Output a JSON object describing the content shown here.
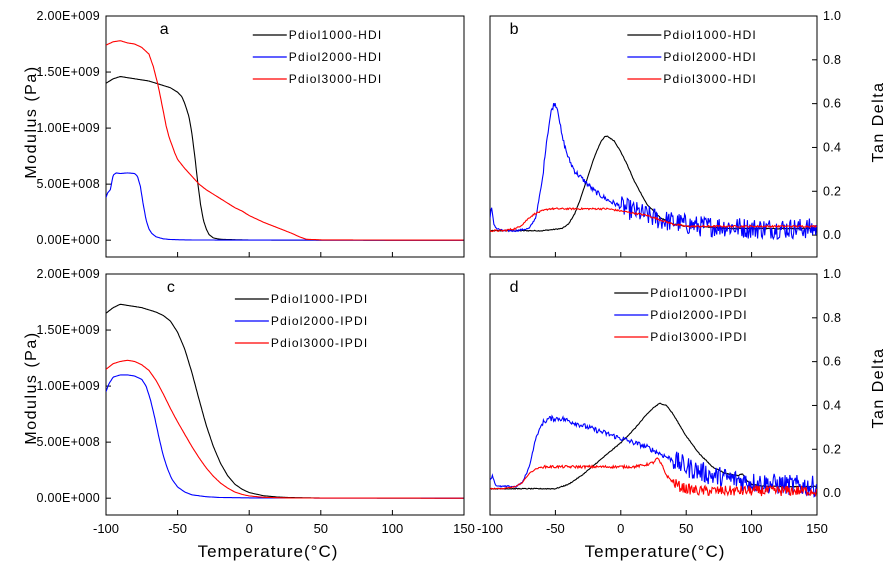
{
  "chart_data": [
    {
      "panel": "a",
      "type": "line",
      "panel_label": "a",
      "ylabel": "Modulus (Pa)",
      "xlim": [
        -100,
        150
      ],
      "ylim": [
        -150000000.0,
        2000000000.0
      ],
      "yticks": [
        0,
        500000000.0,
        1000000000.0,
        1500000000.0,
        2000000000.0
      ],
      "ytick_labels": [
        "0.00E+000",
        "5.00E+008",
        "1.00E+009",
        "1.50E+009",
        "2.00E+009"
      ],
      "y_axis_side": "left",
      "legend_position": "top-right",
      "series": [
        {
          "name": "Pdiol1000-HDI",
          "color": "#000000",
          "noise": 0.0,
          "x": [
            -100,
            -95,
            -90,
            -85,
            -80,
            -75,
            -70,
            -65,
            -60,
            -55,
            -50,
            -47,
            -45,
            -42,
            -40,
            -38,
            -36,
            -34,
            -32,
            -30,
            -28,
            -25,
            -20,
            -10,
            0,
            20,
            50,
            100,
            150
          ],
          "y": [
            1400000000.0,
            1440000000.0,
            1460000000.0,
            1450000000.0,
            1440000000.0,
            1430000000.0,
            1420000000.0,
            1400000000.0,
            1380000000.0,
            1360000000.0,
            1320000000.0,
            1280000000.0,
            1220000000.0,
            1100000000.0,
            950000000.0,
            750000000.0,
            520000000.0,
            320000000.0,
            180000000.0,
            100000000.0,
            50000000.0,
            20000000.0,
            8000000.0,
            4000000.0,
            2000000.0,
            1000000.0,
            500000.0,
            200000.0,
            100000.0
          ]
        },
        {
          "name": "Pdiol2000-HDI",
          "color": "#0000ff",
          "noise": 0.0,
          "x": [
            -100,
            -99,
            -97,
            -95,
            -93,
            -90,
            -85,
            -80,
            -78,
            -76,
            -74,
            -72,
            -70,
            -68,
            -65,
            -60,
            -55,
            -50,
            -40,
            -20,
            0,
            50,
            100,
            150
          ],
          "y": [
            380000000.0,
            420000000.0,
            450000000.0,
            580000000.0,
            600000000.0,
            595000000.0,
            600000000.0,
            595000000.0,
            570000000.0,
            480000000.0,
            320000000.0,
            180000000.0,
            100000000.0,
            60000000.0,
            30000000.0,
            12000000.0,
            6000000.0,
            4000000.0,
            2000000.0,
            1000000.0,
            600000.0,
            300000.0,
            100000.0,
            50000.0
          ]
        },
        {
          "name": "Pdiol3000-HDI",
          "color": "#ff0000",
          "noise": 0.0,
          "x": [
            -100,
            -95,
            -90,
            -85,
            -80,
            -75,
            -70,
            -67,
            -64,
            -62,
            -60,
            -58,
            -56,
            -54,
            -52,
            -50,
            -45,
            -40,
            -35,
            -30,
            -25,
            -20,
            -15,
            -10,
            -5,
            0,
            5,
            10,
            20,
            30,
            35,
            40,
            50,
            100,
            150
          ],
          "y": [
            1740000000.0,
            1770000000.0,
            1780000000.0,
            1760000000.0,
            1750000000.0,
            1720000000.0,
            1660000000.0,
            1550000000.0,
            1400000000.0,
            1280000000.0,
            1150000000.0,
            1020000000.0,
            920000000.0,
            850000000.0,
            780000000.0,
            720000000.0,
            640000000.0,
            570000000.0,
            500000000.0,
            450000000.0,
            410000000.0,
            370000000.0,
            330000000.0,
            290000000.0,
            260000000.0,
            220000000.0,
            190000000.0,
            160000000.0,
            110000000.0,
            60000000.0,
            30000000.0,
            8000000.0,
            3000000.0,
            1000000.0,
            500000.0
          ]
        }
      ]
    },
    {
      "panel": "b",
      "type": "line",
      "panel_label": "b",
      "ylabel": "Tan Delta",
      "xlim": [
        -100,
        150
      ],
      "ylim": [
        -0.1,
        1.0
      ],
      "yticks": [
        0,
        0.2,
        0.4,
        0.6,
        0.8,
        1.0
      ],
      "ytick_labels": [
        "0.0",
        "0.2",
        "0.4",
        "0.6",
        "0.8",
        "1.0"
      ],
      "y_axis_side": "right",
      "legend_position": "top-right",
      "series": [
        {
          "name": "Pdiol1000-HDI",
          "color": "#000000",
          "noise": 0.002,
          "x": [
            -100,
            -80,
            -60,
            -45,
            -40,
            -35,
            -30,
            -25,
            -20,
            -15,
            -12,
            -10,
            -5,
            0,
            5,
            10,
            20,
            30,
            40,
            50,
            60,
            80,
            100,
            120,
            150
          ],
          "y": [
            0.02,
            0.02,
            0.02,
            0.03,
            0.05,
            0.1,
            0.18,
            0.27,
            0.36,
            0.43,
            0.45,
            0.45,
            0.43,
            0.38,
            0.32,
            0.25,
            0.14,
            0.08,
            0.05,
            0.04,
            0.04,
            0.03,
            0.03,
            0.03,
            0.03
          ]
        },
        {
          "name": "Pdiol2000-HDI",
          "color": "#0000ff",
          "noise": 0.008,
          "noise_after": 0,
          "x": [
            -100,
            -99,
            -97,
            -95,
            -90,
            -80,
            -70,
            -65,
            -60,
            -57,
            -55,
            -53,
            -51,
            -50,
            -48,
            -45,
            -40,
            -35,
            -30,
            -20,
            -10,
            0,
            10,
            20,
            30,
            40,
            50,
            60,
            80,
            100,
            120,
            150
          ],
          "y": [
            0.08,
            0.13,
            0.05,
            0.03,
            0.02,
            0.02,
            0.03,
            0.08,
            0.25,
            0.42,
            0.5,
            0.57,
            0.6,
            0.6,
            0.57,
            0.45,
            0.35,
            0.29,
            0.26,
            0.2,
            0.16,
            0.13,
            0.11,
            0.09,
            0.07,
            0.06,
            0.05,
            0.04,
            0.04,
            0.03,
            0.03,
            0.03
          ]
        },
        {
          "name": "Pdiol3000-HDI",
          "color": "#ff0000",
          "noise": 0.004,
          "x": [
            -100,
            -90,
            -80,
            -75,
            -70,
            -65,
            -60,
            -55,
            -50,
            -40,
            -30,
            -20,
            -10,
            0,
            10,
            20,
            30,
            40,
            50,
            60,
            70,
            80,
            100,
            120,
            150
          ],
          "y": [
            0.02,
            0.02,
            0.03,
            0.05,
            0.08,
            0.1,
            0.11,
            0.12,
            0.12,
            0.12,
            0.12,
            0.12,
            0.12,
            0.11,
            0.1,
            0.09,
            0.07,
            0.05,
            0.04,
            0.04,
            0.04,
            0.04,
            0.04,
            0.04,
            0.04
          ]
        }
      ]
    },
    {
      "panel": "c",
      "type": "line",
      "panel_label": "c",
      "ylabel": "Modulus (Pa)",
      "xlabel": "Temperature(°C)",
      "xlim": [
        -100,
        150
      ],
      "ylim": [
        -150000000.0,
        2000000000.0
      ],
      "xticks": [
        -100,
        -50,
        0,
        50,
        100,
        150
      ],
      "yticks": [
        0,
        500000000.0,
        1000000000.0,
        1500000000.0,
        2000000000.0
      ],
      "ytick_labels": [
        "0.00E+000",
        "5.00E+008",
        "1.00E+009",
        "1.50E+009",
        "2.00E+009"
      ],
      "y_axis_side": "left",
      "legend_position": "top-right",
      "series": [
        {
          "name": "Pdiol1000-IPDI",
          "color": "#000000",
          "noise": 0.0,
          "x": [
            -100,
            -95,
            -90,
            -85,
            -80,
            -75,
            -70,
            -65,
            -60,
            -55,
            -50,
            -45,
            -40,
            -35,
            -30,
            -25,
            -20,
            -15,
            -10,
            -5,
            0,
            10,
            20,
            30,
            50,
            100,
            150
          ],
          "y": [
            1650000000.0,
            1700000000.0,
            1730000000.0,
            1720000000.0,
            1710000000.0,
            1700000000.0,
            1680000000.0,
            1660000000.0,
            1630000000.0,
            1580000000.0,
            1480000000.0,
            1330000000.0,
            1120000000.0,
            880000000.0,
            650000000.0,
            460000000.0,
            310000000.0,
            200000000.0,
            125000000.0,
            80000000.0,
            50000000.0,
            22000000.0,
            10000000.0,
            5000000.0,
            2000000.0,
            1000000.0,
            500000.0
          ]
        },
        {
          "name": "Pdiol2000-IPDI",
          "color": "#0000ff",
          "noise": 0.0,
          "x": [
            -100,
            -98,
            -95,
            -90,
            -85,
            -80,
            -75,
            -72,
            -69,
            -66,
            -63,
            -60,
            -57,
            -54,
            -50,
            -45,
            -40,
            -30,
            -20,
            0,
            50,
            100,
            150
          ],
          "y": [
            950000000.0,
            1020000000.0,
            1080000000.0,
            1100000000.0,
            1100000000.0,
            1090000000.0,
            1060000000.0,
            1000000000.0,
            880000000.0,
            720000000.0,
            540000000.0,
            380000000.0,
            260000000.0,
            170000000.0,
            100000000.0,
            55000000.0,
            30000000.0,
            13000000.0,
            6000000.0,
            3000000.0,
            1000000.0,
            500000.0,
            200000.0
          ]
        },
        {
          "name": "Pdiol3000-IPDI",
          "color": "#ff0000",
          "noise": 0.0,
          "x": [
            -100,
            -95,
            -90,
            -85,
            -80,
            -75,
            -70,
            -65,
            -60,
            -55,
            -50,
            -45,
            -40,
            -35,
            -30,
            -25,
            -20,
            -15,
            -10,
            -5,
            0,
            10,
            20,
            30,
            50,
            100,
            150
          ],
          "y": [
            1150000000.0,
            1200000000.0,
            1220000000.0,
            1230000000.0,
            1220000000.0,
            1190000000.0,
            1140000000.0,
            1050000000.0,
            930000000.0,
            800000000.0,
            680000000.0,
            570000000.0,
            460000000.0,
            360000000.0,
            270000000.0,
            195000000.0,
            135000000.0,
            90000000.0,
            55000000.0,
            34000000.0,
            20000000.0,
            8000000.0,
            4000000.0,
            2000000.0,
            1000000.0,
            400000.0,
            200000.0
          ]
        }
      ]
    },
    {
      "panel": "d",
      "type": "line",
      "panel_label": "d",
      "ylabel": "Tan Delta",
      "xlabel": "Temperature(°C)",
      "xlim": [
        -100,
        150
      ],
      "ylim": [
        -0.1,
        1.0
      ],
      "xticks": [
        -100,
        -50,
        0,
        50,
        100,
        150
      ],
      "yticks": [
        0,
        0.2,
        0.4,
        0.6,
        0.8,
        1.0
      ],
      "ytick_labels": [
        "0.0",
        "0.2",
        "0.4",
        "0.6",
        "0.8",
        "1.0"
      ],
      "y_axis_side": "right",
      "legend_position": "top-right",
      "series": [
        {
          "name": "Pdiol1000-IPDI",
          "color": "#000000",
          "noise": 0.002,
          "x": [
            -100,
            -80,
            -60,
            -50,
            -40,
            -30,
            -20,
            -10,
            0,
            10,
            20,
            25,
            30,
            35,
            40,
            50,
            60,
            70,
            80,
            90,
            93,
            96,
            100,
            110,
            120,
            150
          ],
          "y": [
            0.02,
            0.02,
            0.02,
            0.02,
            0.04,
            0.08,
            0.13,
            0.18,
            0.23,
            0.29,
            0.36,
            0.39,
            0.41,
            0.4,
            0.36,
            0.26,
            0.18,
            0.12,
            0.09,
            0.08,
            0.09,
            0.06,
            0.04,
            0.03,
            0.03,
            0.03
          ]
        },
        {
          "name": "Pdiol2000-IPDI",
          "color": "#0000ff",
          "noise": 0.008,
          "noise_after": 40,
          "x": [
            -100,
            -98,
            -96,
            -94,
            -90,
            -80,
            -75,
            -70,
            -65,
            -60,
            -55,
            -50,
            -45,
            -40,
            -30,
            -20,
            -10,
            0,
            10,
            20,
            30,
            40,
            50,
            60,
            70,
            80,
            100,
            120,
            150
          ],
          "y": [
            0.06,
            0.08,
            0.04,
            0.03,
            0.03,
            0.03,
            0.05,
            0.12,
            0.25,
            0.32,
            0.34,
            0.34,
            0.34,
            0.33,
            0.31,
            0.29,
            0.27,
            0.25,
            0.23,
            0.21,
            0.18,
            0.15,
            0.12,
            0.1,
            0.08,
            0.07,
            0.05,
            0.04,
            0.03
          ]
        },
        {
          "name": "Pdiol3000-IPDI",
          "color": "#ff0000",
          "noise": 0.004,
          "noise_after": 40,
          "x": [
            -100,
            -90,
            -80,
            -75,
            -70,
            -65,
            -60,
            -50,
            -40,
            -30,
            -20,
            -10,
            0,
            10,
            20,
            25,
            28,
            30,
            32,
            35,
            40,
            45,
            50,
            60,
            80,
            100,
            120,
            150
          ],
          "y": [
            0.02,
            0.02,
            0.03,
            0.05,
            0.09,
            0.11,
            0.12,
            0.12,
            0.12,
            0.12,
            0.12,
            0.12,
            0.12,
            0.12,
            0.13,
            0.14,
            0.16,
            0.14,
            0.12,
            0.08,
            0.05,
            0.03,
            0.02,
            0.01,
            0.01,
            0.01,
            0.01,
            0.01
          ]
        }
      ]
    }
  ]
}
